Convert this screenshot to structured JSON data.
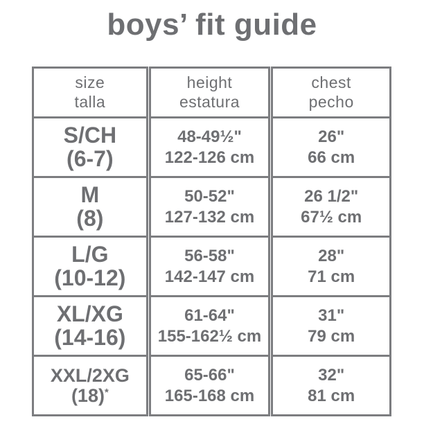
{
  "title": "boys’ fit guide",
  "colors": {
    "text": "#6e6f72",
    "border": "#7c7d80",
    "background": "#ffffff"
  },
  "table": {
    "headers": {
      "size": {
        "en": "size",
        "es": "talla"
      },
      "height": {
        "en": "height",
        "es": "estatura"
      },
      "chest": {
        "en": "chest",
        "es": "pecho"
      }
    },
    "rows": [
      {
        "size": "S/CH",
        "size_range": "(6-7)",
        "size_note": "",
        "height_in": "48-49½\"",
        "height_cm": "122-126 cm",
        "chest_in": "26\"",
        "chest_cm": "66 cm"
      },
      {
        "size": "M",
        "size_range": "(8)",
        "size_note": "",
        "height_in": "50-52\"",
        "height_cm": "127-132 cm",
        "chest_in": "26 1/2\"",
        "chest_cm": "67½ cm"
      },
      {
        "size": "L/G",
        "size_range": "(10-12)",
        "size_note": "",
        "height_in": "56-58\"",
        "height_cm": "142-147 cm",
        "chest_in": "28\"",
        "chest_cm": "71 cm"
      },
      {
        "size": "XL/XG",
        "size_range": "(14-16)",
        "size_note": "",
        "height_in": "61-64\"",
        "height_cm": "155-162½ cm",
        "chest_in": "31\"",
        "chest_cm": "79 cm"
      },
      {
        "size": "XXL/2XG",
        "size_range": "(18)",
        "size_note": "*",
        "height_in": "65-66\"",
        "height_cm": "165-168 cm",
        "chest_in": "32\"",
        "chest_cm": "81 cm"
      }
    ]
  },
  "chart_data": {
    "type": "table",
    "title": "boys’ fit guide",
    "columns": [
      "size / talla",
      "height / estatura",
      "chest / pecho"
    ],
    "rows": [
      [
        "S/CH (6-7)",
        "48-49½\" / 122-126 cm",
        "26\" / 66 cm"
      ],
      [
        "M (8)",
        "50-52\" / 127-132 cm",
        "26 1/2\" / 67½ cm"
      ],
      [
        "L/G (10-12)",
        "56-58\" / 142-147 cm",
        "28\" / 71 cm"
      ],
      [
        "XL/XG (14-16)",
        "61-64\" / 155-162½ cm",
        "31\" / 79 cm"
      ],
      [
        "XXL/2XG (18)*",
        "65-66\" / 165-168 cm",
        "32\" / 81 cm"
      ]
    ]
  }
}
